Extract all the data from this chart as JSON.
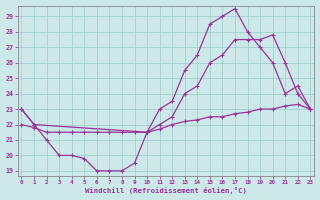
{
  "xlabel": "Windchill (Refroidissement éolien,°C)",
  "bg_color": "#cce8e8",
  "line_color": "#993399",
  "grid_color": "#99cccc",
  "xlim": [
    -0.3,
    23.3
  ],
  "ylim": [
    18.7,
    29.7
  ],
  "yticks": [
    19,
    20,
    21,
    22,
    23,
    24,
    25,
    26,
    27,
    28,
    29
  ],
  "xticks": [
    0,
    1,
    2,
    3,
    4,
    5,
    6,
    7,
    8,
    9,
    10,
    11,
    12,
    13,
    14,
    15,
    16,
    17,
    18,
    19,
    20,
    21,
    22,
    23
  ],
  "curve1": {
    "x": [
      10,
      11,
      12,
      13,
      14,
      15,
      16,
      17,
      18,
      19,
      20,
      21,
      22,
      23
    ],
    "y": [
      21.5,
      23.0,
      23.5,
      25.5,
      26.5,
      28.5,
      29.0,
      29.5,
      28.0,
      27.0,
      26.0,
      24.0,
      24.5,
      23.0
    ]
  },
  "curve2": {
    "x": [
      0,
      1,
      10,
      11,
      12,
      13,
      14,
      15,
      16,
      17,
      18,
      19,
      20,
      21,
      22,
      23
    ],
    "y": [
      23.0,
      22.0,
      21.5,
      22.0,
      22.5,
      24.0,
      24.5,
      26.0,
      26.5,
      27.5,
      27.5,
      27.5,
      27.8,
      26.0,
      24.0,
      23.0
    ]
  },
  "curve3": {
    "x": [
      0,
      1,
      2,
      3,
      4,
      5,
      6,
      7,
      8,
      9,
      10,
      11,
      12,
      13,
      14,
      15,
      16,
      17,
      18,
      19,
      20,
      21,
      22,
      23
    ],
    "y": [
      22.0,
      21.8,
      21.5,
      21.5,
      21.5,
      21.5,
      21.5,
      21.5,
      21.5,
      21.5,
      21.5,
      21.7,
      22.0,
      22.2,
      22.3,
      22.5,
      22.5,
      22.7,
      22.8,
      23.0,
      23.0,
      23.2,
      23.3,
      23.0
    ]
  },
  "curve4": {
    "x": [
      0,
      1,
      2,
      3,
      4,
      5,
      6,
      7,
      8,
      9,
      10
    ],
    "y": [
      23.0,
      22.0,
      21.0,
      20.0,
      20.0,
      19.8,
      19.0,
      19.0,
      19.0,
      19.5,
      21.5
    ]
  }
}
